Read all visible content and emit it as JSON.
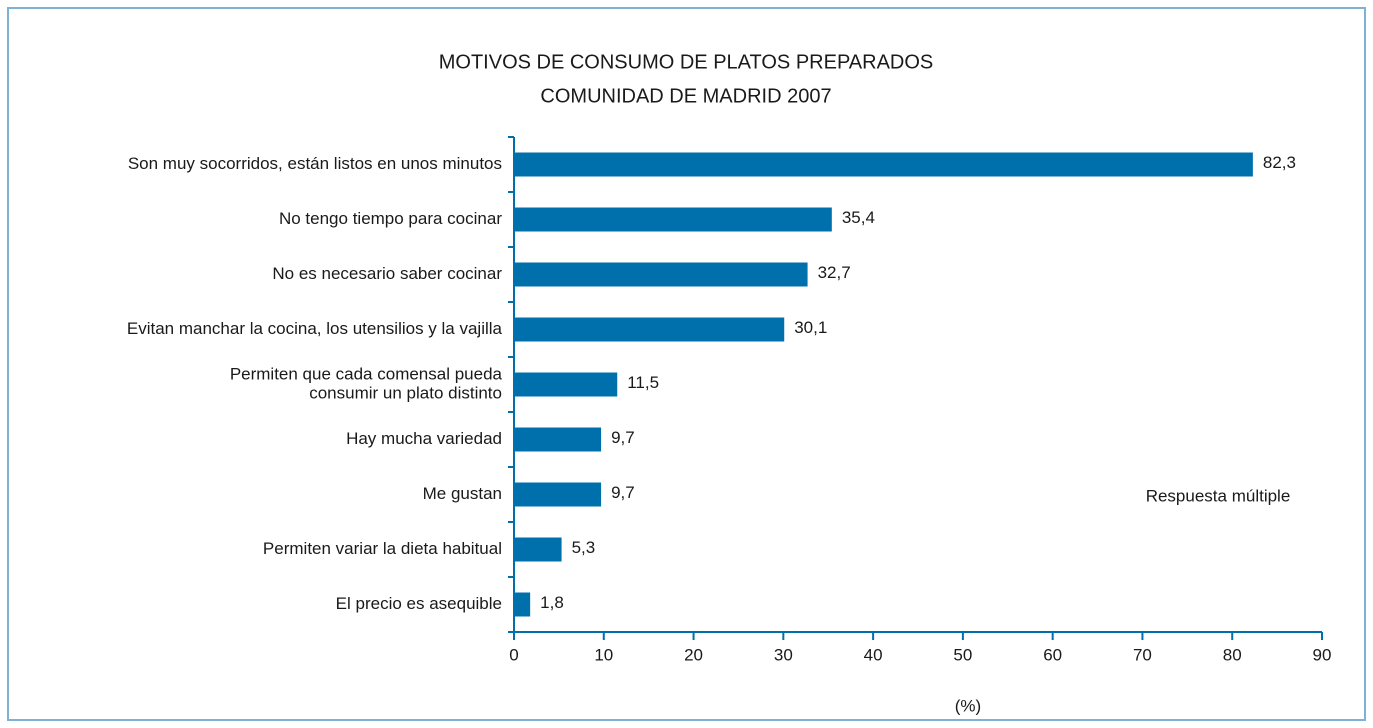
{
  "chart_data": {
    "type": "bar",
    "orientation": "horizontal",
    "title": "MOTIVOS DE CONSUMO DE PLATOS PREPARADOS",
    "subtitle": "COMUNIDAD DE MADRID 2007",
    "categories": [
      [
        "Son muy socorridos, están listos en unos minutos"
      ],
      [
        "No tengo tiempo para cocinar"
      ],
      [
        "No es necesario saber cocinar"
      ],
      [
        "Evitan manchar la cocina, los utensilios y la vajilla"
      ],
      [
        "Permiten que cada comensal pueda",
        "consumir un plato distinto"
      ],
      [
        "Hay mucha variedad"
      ],
      [
        "Me gustan"
      ],
      [
        "Permiten variar la dieta habitual"
      ],
      [
        "El precio es asequible"
      ]
    ],
    "values": [
      82.3,
      35.4,
      32.7,
      30.1,
      11.5,
      9.7,
      9.7,
      5.3,
      1.8
    ],
    "value_labels": [
      "82,3",
      "35,4",
      "32,7",
      "30,1",
      "11,5",
      "9,7",
      "9,7",
      "5,3",
      "1,8"
    ],
    "color": "#0070ad",
    "xlim": [
      0,
      90
    ],
    "xticks": [
      0,
      10,
      20,
      30,
      40,
      50,
      60,
      70,
      80,
      90
    ],
    "xlabel": "(%)",
    "annotation": "Respuesta múltiple"
  }
}
